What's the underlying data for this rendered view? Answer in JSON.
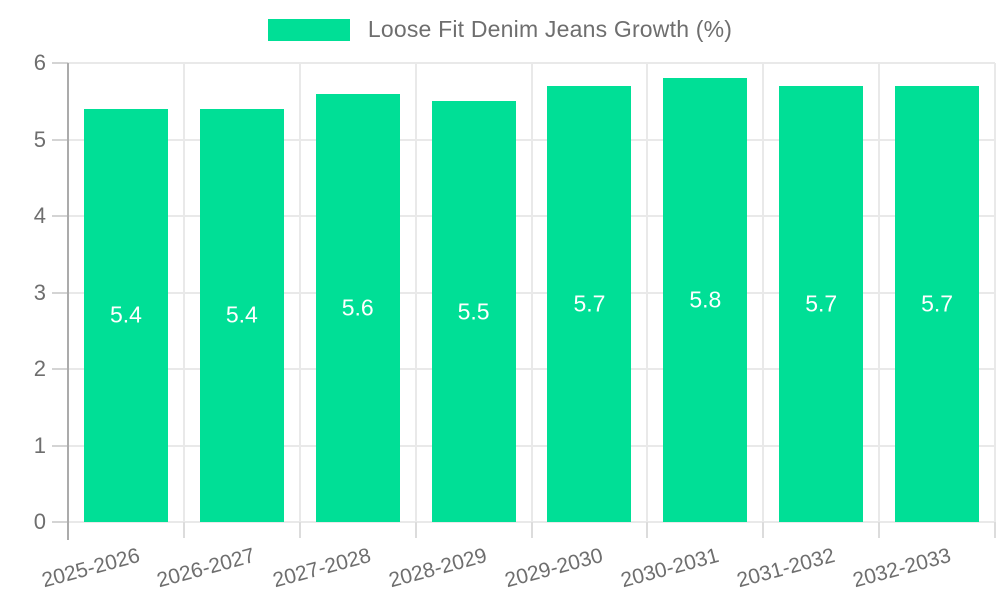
{
  "chart_data": {
    "type": "bar",
    "title": "Loose Fit Denim Jeans Growth (%)",
    "categories": [
      "2025-2026",
      "2026-2027",
      "2027-2028",
      "2028-2029",
      "2029-2030",
      "2030-2031",
      "2031-2032",
      "2032-2033"
    ],
    "values": [
      5.4,
      5.4,
      5.6,
      5.5,
      5.7,
      5.8,
      5.7,
      5.7
    ],
    "value_labels": [
      "5.4",
      "5.4",
      "5.6",
      "5.5",
      "5.7",
      "5.8",
      "5.7",
      "5.7"
    ],
    "xlabel": "",
    "ylabel": "",
    "ylim": [
      0,
      6
    ],
    "yticks": [
      "0",
      "1",
      "2",
      "3",
      "4",
      "5",
      "6"
    ],
    "grid": "on",
    "legend_position": "top-center",
    "colors": {
      "bar": "#00df96",
      "bar_value_text": "#ffffff",
      "axis_text": "#6e6e6e",
      "legend_text": "#6e6e6e",
      "gridline": "#e9e9e9",
      "background": "#ffffff"
    }
  }
}
